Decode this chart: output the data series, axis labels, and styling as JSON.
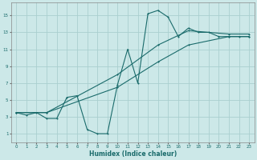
{
  "title": "",
  "xlabel": "Humidex (Indice chaleur)",
  "bg_color": "#cce8e8",
  "line_color": "#1a6b6b",
  "grid_color": "#aacfcf",
  "xlim": [
    -0.5,
    23.5
  ],
  "ylim": [
    0,
    16.5
  ],
  "xticks": [
    0,
    1,
    2,
    3,
    4,
    5,
    6,
    7,
    8,
    9,
    10,
    11,
    12,
    13,
    14,
    15,
    16,
    17,
    18,
    19,
    20,
    21,
    22,
    23
  ],
  "yticks": [
    1,
    3,
    5,
    7,
    9,
    11,
    13,
    15
  ],
  "line1_x": [
    0,
    1,
    2,
    3,
    4,
    5,
    6,
    7,
    8,
    9,
    10,
    11,
    12,
    13,
    14,
    15,
    16,
    17,
    18,
    19,
    20,
    21,
    22,
    23
  ],
  "line1_y": [
    3.5,
    3.2,
    3.5,
    2.8,
    2.8,
    5.3,
    5.5,
    1.5,
    1.0,
    1.0,
    6.8,
    11.0,
    7.0,
    15.2,
    15.6,
    14.8,
    12.5,
    13.5,
    13.0,
    13.0,
    12.5,
    12.5,
    12.5,
    12.5
  ],
  "line2_x": [
    0,
    3,
    10,
    14,
    17,
    21,
    23
  ],
  "line2_y": [
    3.5,
    3.5,
    8.0,
    11.5,
    13.2,
    12.8,
    12.8
  ],
  "line3_x": [
    0,
    3,
    10,
    14,
    17,
    21,
    23
  ],
  "line3_y": [
    3.5,
    3.5,
    6.5,
    9.5,
    11.5,
    12.5,
    12.5
  ]
}
